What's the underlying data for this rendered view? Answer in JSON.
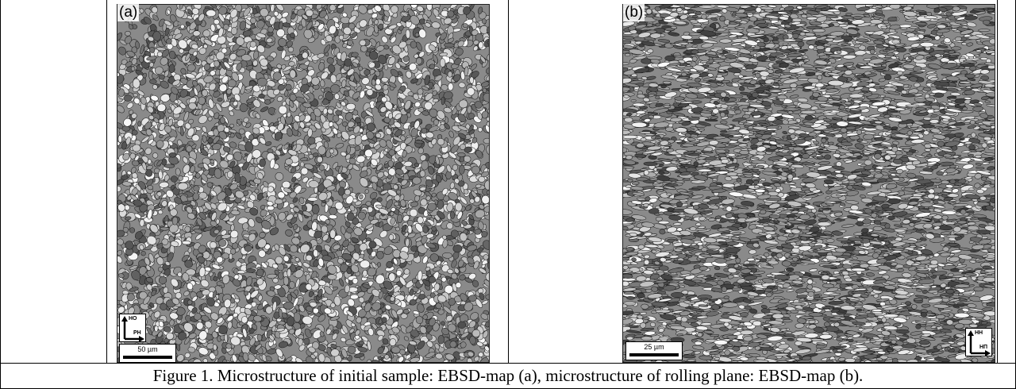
{
  "panels": [
    {
      "label": "(a)",
      "axis_up": "НО",
      "axis_right": "РН",
      "scale_text": "50 µm",
      "texture": "equiaxed-grains"
    },
    {
      "label": "(b)",
      "axis_up": "НН",
      "axis_right": "НП",
      "scale_text": "25 µm",
      "texture": "elongated-grains"
    }
  ],
  "caption": "Figure 1. Microstructure of initial sample: EBSD-map (a), microstructure of rolling plane: EBSD-map  (b)."
}
